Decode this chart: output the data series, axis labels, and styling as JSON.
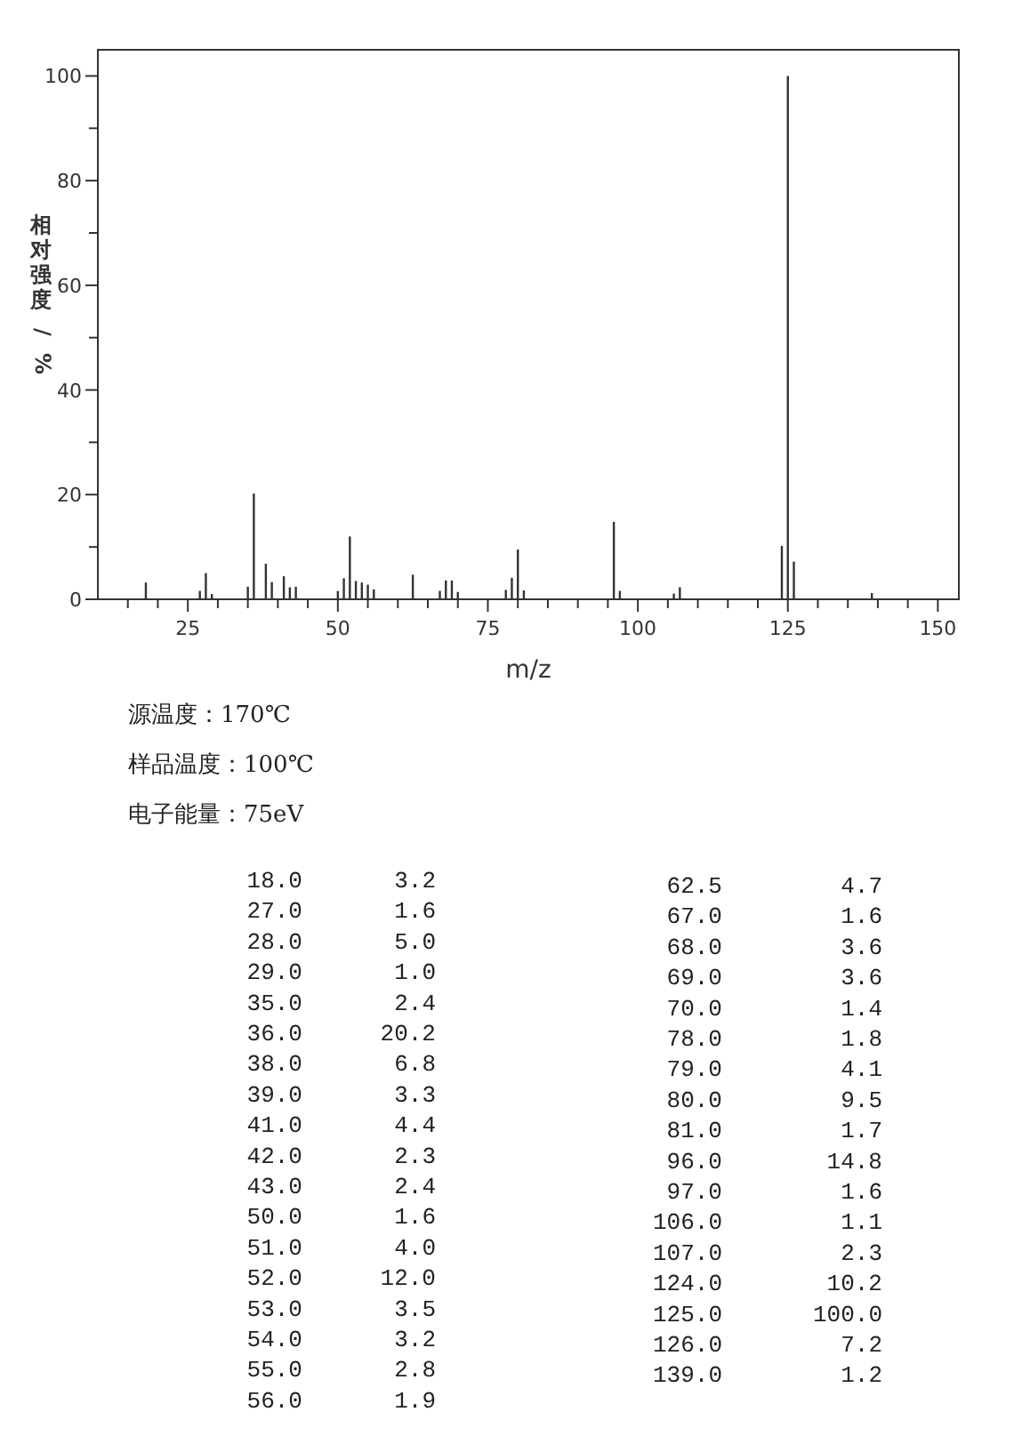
{
  "chart_data": {
    "type": "bar",
    "xlabel": "m/z",
    "ylabel": "相对强度/%",
    "x": [
      18,
      27,
      28,
      29,
      35,
      36,
      38,
      39,
      41,
      42,
      43,
      50,
      51,
      52,
      53,
      54,
      55,
      56,
      62.5,
      67,
      68,
      69,
      70,
      78,
      79,
      80,
      81,
      96,
      97,
      106,
      107,
      124,
      125,
      126,
      139
    ],
    "values": [
      3.2,
      1.6,
      5.0,
      1.0,
      2.4,
      20.2,
      6.8,
      3.3,
      4.4,
      2.3,
      2.4,
      1.6,
      4.0,
      12.0,
      3.5,
      3.2,
      2.8,
      1.9,
      4.7,
      1.6,
      3.6,
      3.6,
      1.4,
      1.8,
      4.1,
      9.5,
      1.7,
      14.8,
      1.6,
      1.1,
      2.3,
      10.2,
      100.0,
      7.2,
      1.2
    ],
    "color": "#333333",
    "xlim": [
      10,
      153.5
    ],
    "xticks": [
      {
        "value": 15,
        "label": null
      },
      {
        "value": 20,
        "label": null
      },
      25,
      {
        "value": 30,
        "label": null
      },
      {
        "value": 35,
        "label": null
      },
      {
        "value": 40,
        "label": null
      },
      {
        "value": 45,
        "label": null
      },
      50,
      {
        "value": 55,
        "label": null
      },
      {
        "value": 60,
        "label": null
      },
      {
        "value": 65,
        "label": null
      },
      {
        "value": 70,
        "label": null
      },
      75,
      {
        "value": 80,
        "label": null
      },
      {
        "value": 85,
        "label": null
      },
      {
        "value": 90,
        "label": null
      },
      {
        "value": 95,
        "label": null
      },
      100,
      {
        "value": 105,
        "label": null
      },
      {
        "value": 110,
        "label": null
      },
      {
        "value": 115,
        "label": null
      },
      {
        "value": 120,
        "label": null
      },
      125,
      {
        "value": 130,
        "label": null
      },
      {
        "value": 135,
        "label": null
      },
      {
        "value": 140,
        "label": null
      },
      {
        "value": 145,
        "label": null
      },
      150
    ],
    "ylim": [
      0,
      105
    ],
    "yticks": [
      0,
      {
        "value": 10,
        "label": null
      },
      20,
      {
        "value": 30,
        "label": null
      },
      40,
      {
        "value": 50,
        "label": null
      },
      60,
      {
        "value": 70,
        "label": null
      },
      80,
      {
        "value": 90,
        "label": null
      },
      100
    ],
    "grid": false,
    "annotations": [
      "源温度：170℃",
      "样品温度：100℃",
      "电子能量：75eV",
      [
        "18.0",
        "3.2"
      ],
      [
        "27.0",
        "1.6"
      ],
      [
        "28.0",
        "5.0"
      ],
      [
        "29.0",
        "1.0"
      ],
      [
        "35.0",
        "2.4"
      ],
      [
        "36.0",
        "20.2"
      ],
      [
        "38.0",
        "6.8"
      ],
      [
        "39.0",
        "3.3"
      ],
      [
        "41.0",
        "4.4"
      ],
      [
        "42.0",
        "2.3"
      ],
      [
        "43.0",
        "2.4"
      ],
      [
        "50.0",
        "1.6"
      ],
      [
        "51.0",
        "4.0"
      ],
      [
        "52.0",
        "12.0"
      ],
      [
        "53.0",
        "3.5"
      ],
      [
        "54.0",
        "3.2"
      ],
      [
        "55.0",
        "2.8"
      ],
      [
        "56.0",
        "1.9"
      ],
      [
        "62.5",
        "4.7"
      ],
      [
        "67.0",
        "1.6"
      ],
      [
        "68.0",
        "3.6"
      ],
      [
        "69.0",
        "3.6"
      ],
      [
        "70.0",
        "1.4"
      ],
      [
        "78.0",
        "1.8"
      ],
      [
        "79.0",
        "4.1"
      ],
      [
        "80.0",
        "9.5"
      ],
      [
        "81.0",
        "1.7"
      ],
      [
        "96.0",
        "14.8"
      ],
      [
        "97.0",
        "1.6"
      ],
      [
        "106.0",
        "1.1"
      ],
      [
        "107.0",
        "2.3"
      ],
      [
        "124.0",
        "10.2"
      ],
      [
        "125.0",
        "100.0"
      ],
      [
        "126.0",
        "7.2"
      ],
      [
        "139.0",
        "1.2"
      ]
    ]
  }
}
